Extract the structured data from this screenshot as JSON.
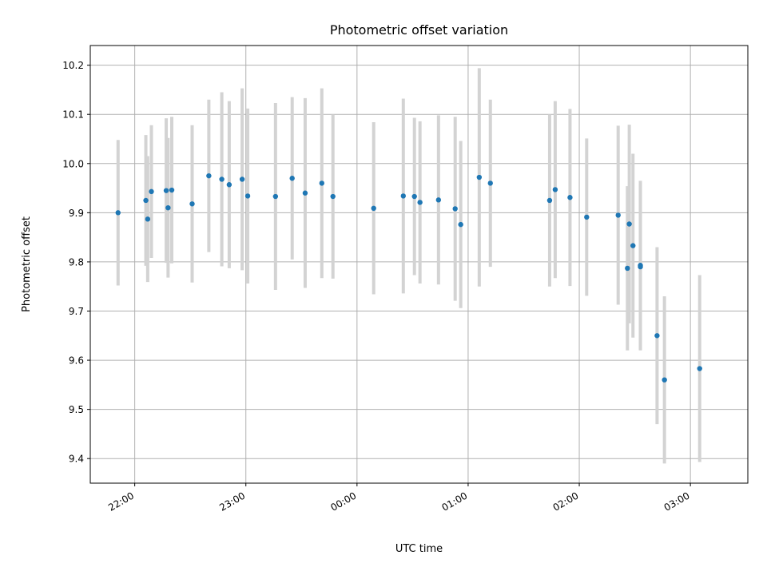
{
  "chart_data": {
    "type": "scatter",
    "title": "Photometric offset variation",
    "xlabel": "UTC time",
    "ylabel": "Photometric offset",
    "x_ticks": [
      "22:00",
      "23:00",
      "00:00",
      "01:00",
      "02:00",
      "03:00"
    ],
    "y_ticks": [
      "9.4",
      "9.5",
      "9.6",
      "9.7",
      "9.8",
      "9.9",
      "10.0",
      "10.1",
      "10.2"
    ],
    "xlim": [
      "21:36",
      "03:31"
    ],
    "ylim": [
      9.35,
      10.24
    ],
    "grid": true,
    "colors": {
      "point": "#1f77b4",
      "errorbar": "#d3d3d3",
      "grid": "#b0b0b0"
    },
    "points": [
      {
        "t": "21:51",
        "y": 9.9,
        "err": 0.148
      },
      {
        "t": "22:06",
        "y": 9.925,
        "err": 0.133
      },
      {
        "t": "22:07",
        "y": 9.887,
        "err": 0.128
      },
      {
        "t": "22:09",
        "y": 9.943,
        "err": 0.135
      },
      {
        "t": "22:17",
        "y": 9.945,
        "err": 0.147
      },
      {
        "t": "22:18",
        "y": 9.91,
        "err": 0.142
      },
      {
        "t": "22:20",
        "y": 9.946,
        "err": 0.149
      },
      {
        "t": "22:31",
        "y": 9.918,
        "err": 0.16
      },
      {
        "t": "22:40",
        "y": 9.975,
        "err": 0.155
      },
      {
        "t": "22:47",
        "y": 9.968,
        "err": 0.177
      },
      {
        "t": "22:51",
        "y": 9.957,
        "err": 0.17
      },
      {
        "t": "22:58",
        "y": 9.968,
        "err": 0.185
      },
      {
        "t": "23:01",
        "y": 9.934,
        "err": 0.178
      },
      {
        "t": "23:16",
        "y": 9.933,
        "err": 0.19
      },
      {
        "t": "23:25",
        "y": 9.97,
        "err": 0.165
      },
      {
        "t": "23:32",
        "y": 9.94,
        "err": 0.193
      },
      {
        "t": "23:41",
        "y": 9.96,
        "err": 0.193
      },
      {
        "t": "23:47",
        "y": 9.933,
        "err": 0.167
      },
      {
        "t": "00:09",
        "y": 9.909,
        "err": 0.175
      },
      {
        "t": "00:25",
        "y": 9.934,
        "err": 0.198
      },
      {
        "t": "00:31",
        "y": 9.933,
        "err": 0.16
      },
      {
        "t": "00:34",
        "y": 9.921,
        "err": 0.165
      },
      {
        "t": "00:44",
        "y": 9.926,
        "err": 0.172
      },
      {
        "t": "00:53",
        "y": 9.908,
        "err": 0.187
      },
      {
        "t": "00:56",
        "y": 9.876,
        "err": 0.17
      },
      {
        "t": "01:06",
        "y": 9.972,
        "err": 0.222
      },
      {
        "t": "01:12",
        "y": 9.96,
        "err": 0.17
      },
      {
        "t": "01:44",
        "y": 9.925,
        "err": 0.175
      },
      {
        "t": "01:47",
        "y": 9.947,
        "err": 0.18
      },
      {
        "t": "01:55",
        "y": 9.931,
        "err": 0.18
      },
      {
        "t": "02:04",
        "y": 9.891,
        "err": 0.16
      },
      {
        "t": "02:21",
        "y": 9.895,
        "err": 0.182
      },
      {
        "t": "02:26",
        "y": 9.787,
        "err": 0.167
      },
      {
        "t": "02:27",
        "y": 9.877,
        "err": 0.202
      },
      {
        "t": "02:29",
        "y": 9.833,
        "err": 0.187
      },
      {
        "t": "02:33",
        "y": 9.793,
        "err": 0.172
      },
      {
        "t": "02:33",
        "y": 9.79,
        "err": 0.17
      },
      {
        "t": "02:42",
        "y": 9.65,
        "err": 0.18
      },
      {
        "t": "02:46",
        "y": 9.56,
        "err": 0.17
      },
      {
        "t": "03:05",
        "y": 9.583,
        "err": 0.19
      }
    ]
  }
}
